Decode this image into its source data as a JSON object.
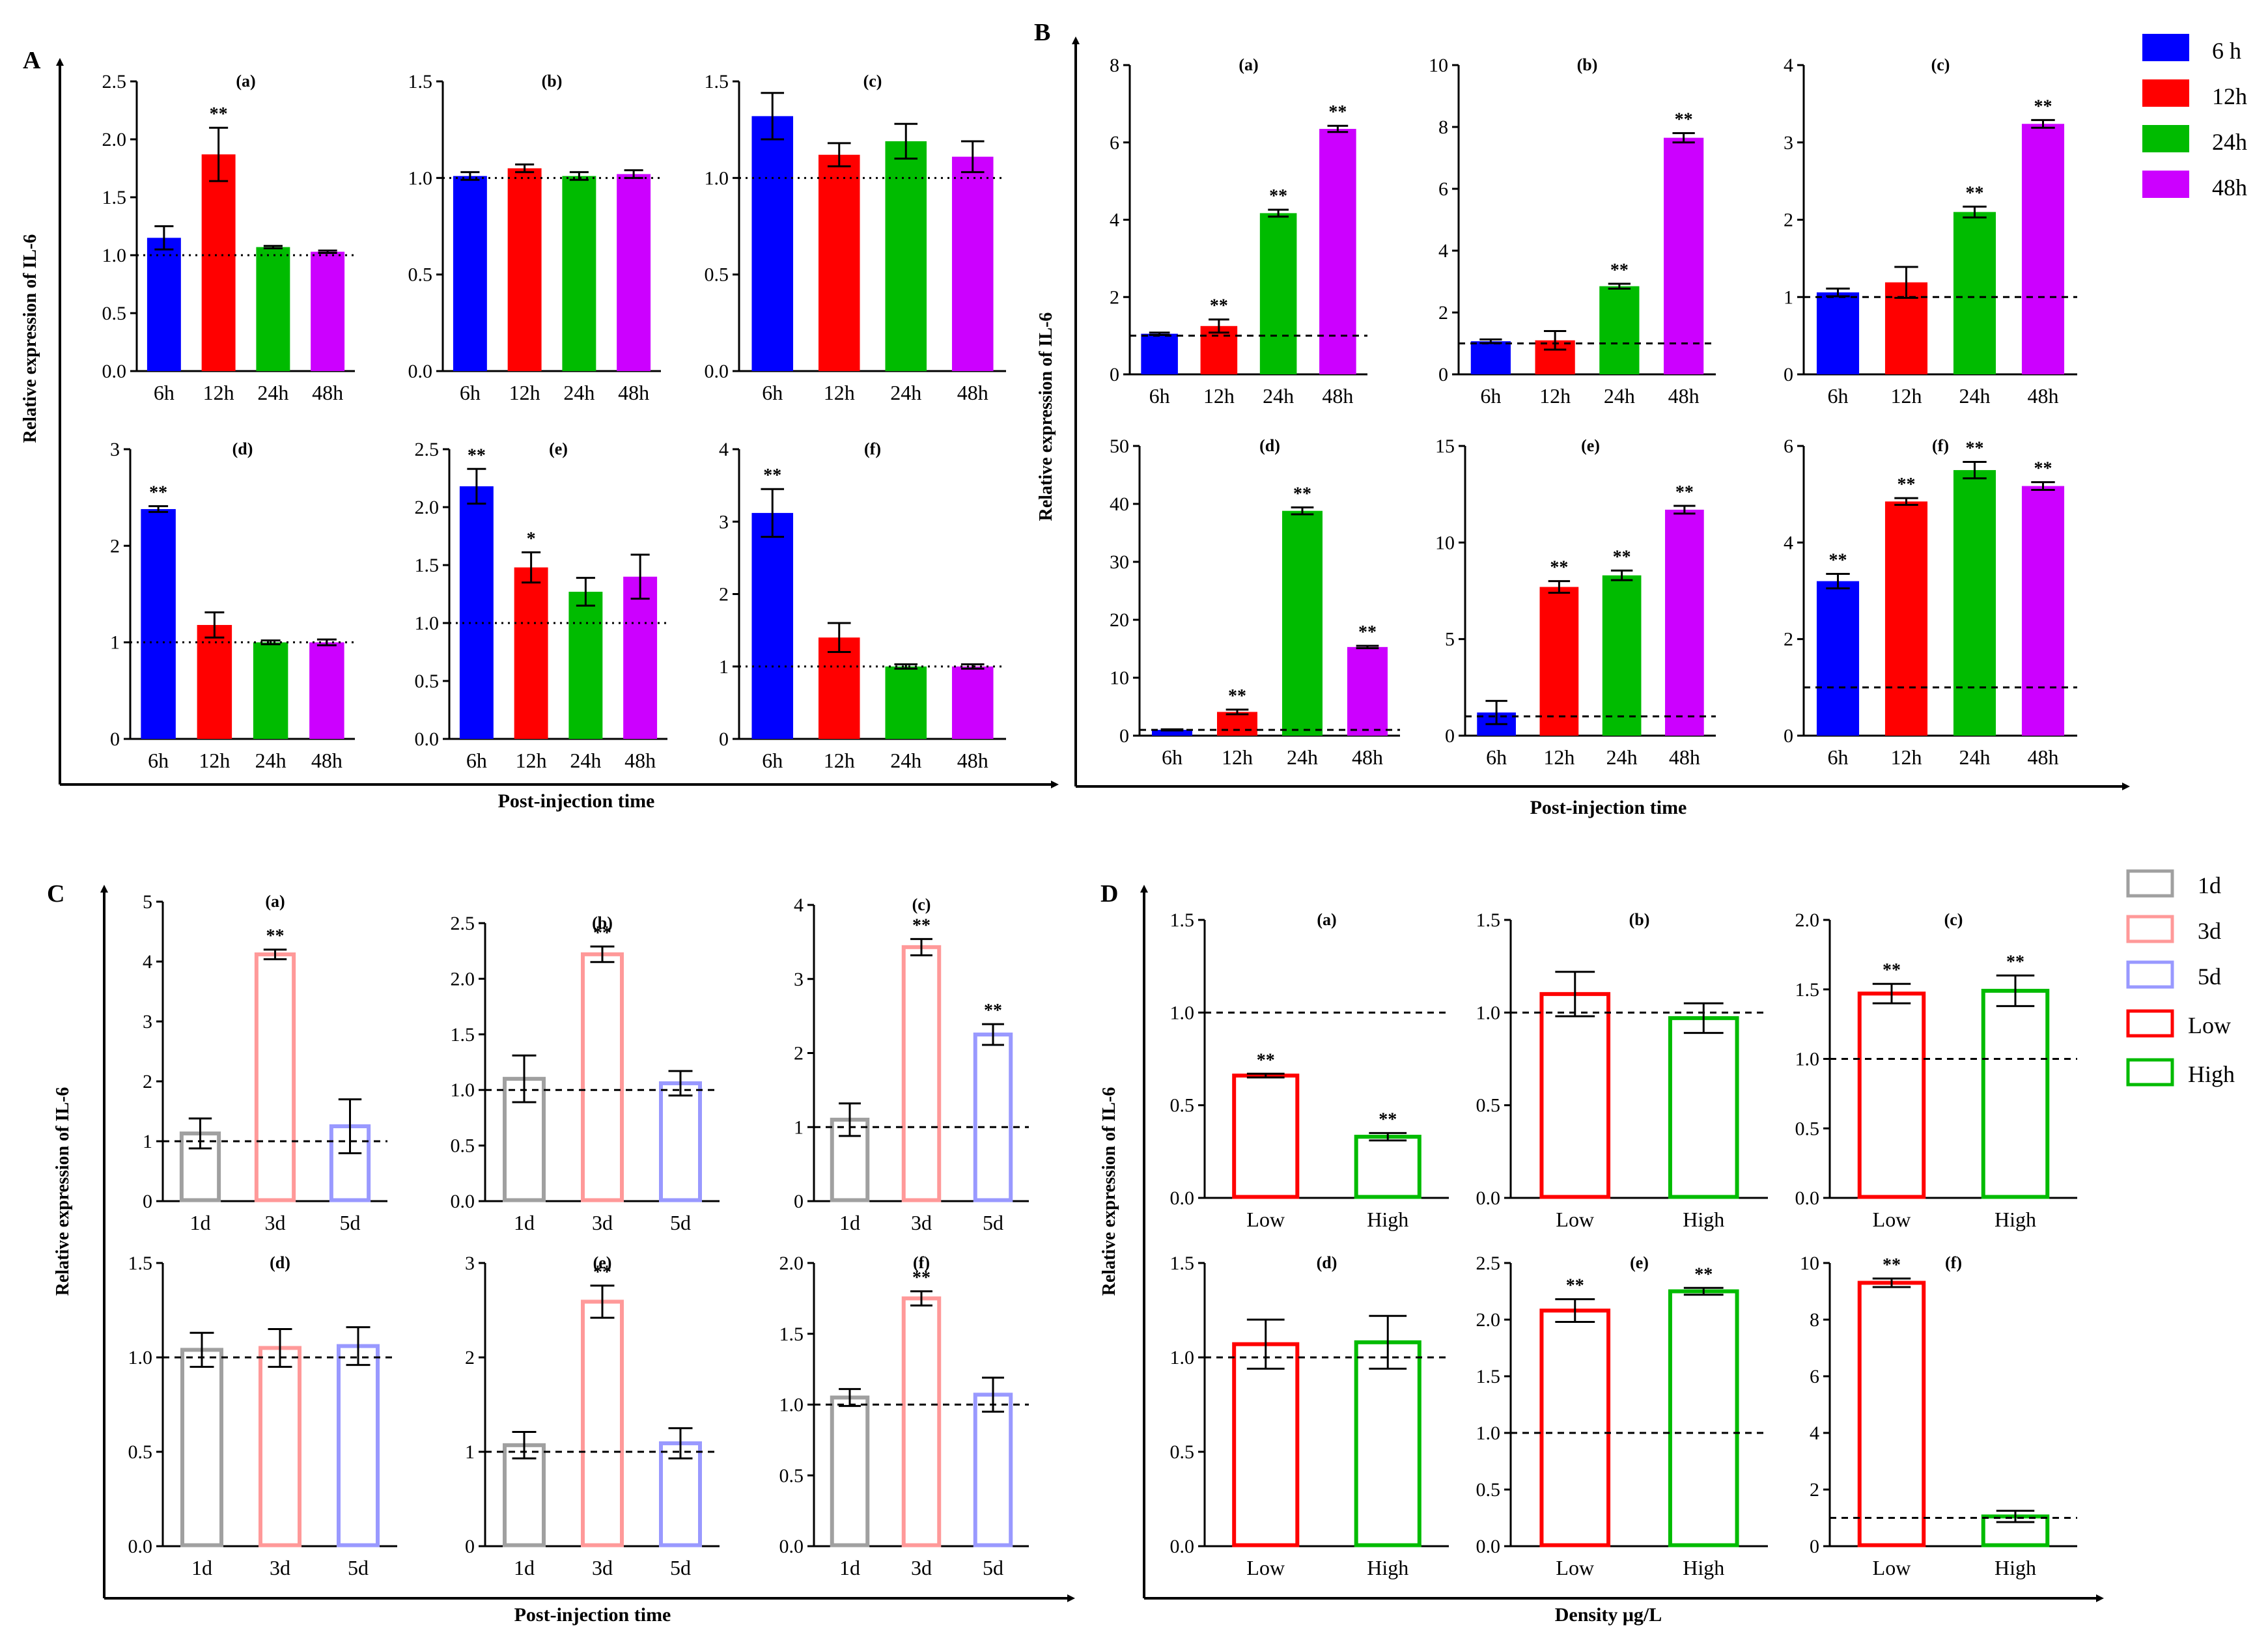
{
  "figure": {
    "panel_letters": [
      "A",
      "B",
      "C",
      "D"
    ],
    "ylabel": "Relative expression of IL-6",
    "xlabels": {
      "A": "Post-injection time",
      "B": "Post-injection time",
      "C": "Post-injection time",
      "D": "Density μg/L"
    },
    "legend_time": [
      {
        "label": "6 h",
        "color": "#0000ff"
      },
      {
        "label": "12h",
        "color": "#ff0000"
      },
      {
        "label": "24h",
        "color": "#00bb00"
      },
      {
        "label": "48h",
        "color": "#cc00ff"
      }
    ],
    "legend_day_density": [
      {
        "label": "1d",
        "color": "#a0a0a0"
      },
      {
        "label": "3d",
        "color": "#ff9999"
      },
      {
        "label": "5d",
        "color": "#9999ff"
      },
      {
        "label": "Low",
        "color": "#ff0000"
      },
      {
        "label": "High",
        "color": "#00bb00"
      }
    ]
  },
  "chart_data": [
    {
      "panel": "A",
      "subtitle": "(a)",
      "type": "bar",
      "style": "filled",
      "categories": [
        "6h",
        "12h",
        "24h",
        "48h"
      ],
      "colors": [
        "#0000ff",
        "#ff0000",
        "#00bb00",
        "#cc00ff"
      ],
      "values": [
        1.15,
        1.87,
        1.07,
        1.03
      ],
      "errors": [
        0.1,
        0.23,
        0.01,
        0.01
      ],
      "sig": [
        "",
        "**",
        "",
        ""
      ],
      "ylim": [
        0,
        2.5
      ],
      "yticks": [
        "0.0",
        "0.5",
        "1.0",
        "1.5",
        "2.0",
        "2.5"
      ],
      "reference": 1.0,
      "ref_style": "dotted"
    },
    {
      "panel": "A",
      "subtitle": "(b)",
      "type": "bar",
      "style": "filled",
      "categories": [
        "6h",
        "12h",
        "24h",
        "48h"
      ],
      "colors": [
        "#0000ff",
        "#ff0000",
        "#00bb00",
        "#cc00ff"
      ],
      "values": [
        1.01,
        1.05,
        1.01,
        1.02
      ],
      "errors": [
        0.02,
        0.02,
        0.02,
        0.02
      ],
      "sig": [
        "",
        "",
        "",
        ""
      ],
      "ylim": [
        0,
        1.5
      ],
      "yticks": [
        "0.0",
        "0.5",
        "1.0",
        "1.5"
      ],
      "reference": 1.0,
      "ref_style": "dotted"
    },
    {
      "panel": "A",
      "subtitle": "(c)",
      "type": "bar",
      "style": "filled",
      "categories": [
        "6h",
        "12h",
        "24h",
        "48h"
      ],
      "colors": [
        "#0000ff",
        "#ff0000",
        "#00bb00",
        "#cc00ff"
      ],
      "values": [
        1.32,
        1.12,
        1.19,
        1.11
      ],
      "errors": [
        0.12,
        0.06,
        0.09,
        0.08
      ],
      "sig": [
        "",
        "",
        "",
        ""
      ],
      "ylim": [
        0,
        1.5
      ],
      "yticks": [
        "0.0",
        "0.5",
        "1.0",
        "1.5"
      ],
      "reference": 1.0,
      "ref_style": "dotted"
    },
    {
      "panel": "A",
      "subtitle": "(d)",
      "type": "bar",
      "style": "filled",
      "categories": [
        "6h",
        "12h",
        "24h",
        "48h"
      ],
      "colors": [
        "#0000ff",
        "#ff0000",
        "#00bb00",
        "#cc00ff"
      ],
      "values": [
        2.38,
        1.18,
        1.0,
        1.0
      ],
      "errors": [
        0.03,
        0.13,
        0.02,
        0.03
      ],
      "sig": [
        "**",
        "",
        "",
        ""
      ],
      "ylim": [
        0,
        3
      ],
      "yticks": [
        "0",
        "1",
        "2",
        "3"
      ],
      "reference": 1.0,
      "ref_style": "dotted"
    },
    {
      "panel": "A",
      "subtitle": "(e)",
      "type": "bar",
      "style": "filled",
      "categories": [
        "6h",
        "12h",
        "24h",
        "48h"
      ],
      "colors": [
        "#0000ff",
        "#ff0000",
        "#00bb00",
        "#cc00ff"
      ],
      "values": [
        2.18,
        1.48,
        1.27,
        1.4
      ],
      "errors": [
        0.15,
        0.13,
        0.12,
        0.19
      ],
      "sig": [
        "**",
        "*",
        "",
        ""
      ],
      "ylim": [
        0,
        2.5
      ],
      "yticks": [
        "0.0",
        "0.5",
        "1.0",
        "1.5",
        "2.0",
        "2.5"
      ],
      "reference": 1.0,
      "ref_style": "dotted"
    },
    {
      "panel": "A",
      "subtitle": "(f)",
      "type": "bar",
      "style": "filled",
      "categories": [
        "6h",
        "12h",
        "24h",
        "48h"
      ],
      "colors": [
        "#0000ff",
        "#ff0000",
        "#00bb00",
        "#cc00ff"
      ],
      "values": [
        3.12,
        1.4,
        1.0,
        1.0
      ],
      "errors": [
        0.33,
        0.2,
        0.03,
        0.03
      ],
      "sig": [
        "**",
        "",
        "",
        ""
      ],
      "ylim": [
        0,
        4
      ],
      "yticks": [
        "0",
        "1",
        "2",
        "3",
        "4"
      ],
      "reference": 1.0,
      "ref_style": "dotted"
    },
    {
      "panel": "B",
      "subtitle": "(a)",
      "type": "bar",
      "style": "filled",
      "categories": [
        "6h",
        "12h",
        "24h",
        "48h"
      ],
      "colors": [
        "#0000ff",
        "#ff0000",
        "#00bb00",
        "#cc00ff"
      ],
      "values": [
        1.05,
        1.25,
        4.17,
        6.35
      ],
      "errors": [
        0.03,
        0.17,
        0.09,
        0.08
      ],
      "sig": [
        "",
        "**",
        "**",
        "**"
      ],
      "ylim": [
        0,
        8
      ],
      "yticks": [
        "0",
        "2",
        "4",
        "6",
        "8"
      ],
      "reference": 1.0,
      "ref_style": "dashed"
    },
    {
      "panel": "B",
      "subtitle": "(b)",
      "type": "bar",
      "style": "filled",
      "categories": [
        "6h",
        "12h",
        "24h",
        "48h"
      ],
      "colors": [
        "#0000ff",
        "#ff0000",
        "#00bb00",
        "#cc00ff"
      ],
      "values": [
        1.07,
        1.1,
        2.85,
        7.65
      ],
      "errors": [
        0.06,
        0.3,
        0.08,
        0.15
      ],
      "sig": [
        "",
        "",
        "**",
        "**"
      ],
      "ylim": [
        0,
        10
      ],
      "yticks": [
        "0",
        "2",
        "4",
        "6",
        "8",
        "10"
      ],
      "reference": 1.0,
      "ref_style": "dashed"
    },
    {
      "panel": "B",
      "subtitle": "(c)",
      "type": "bar",
      "style": "filled",
      "categories": [
        "6h",
        "12h",
        "24h",
        "48h"
      ],
      "colors": [
        "#0000ff",
        "#ff0000",
        "#00bb00",
        "#cc00ff"
      ],
      "values": [
        1.06,
        1.19,
        2.1,
        3.24
      ],
      "errors": [
        0.05,
        0.2,
        0.07,
        0.05
      ],
      "sig": [
        "",
        "",
        "**",
        "**"
      ],
      "ylim": [
        0,
        4
      ],
      "yticks": [
        "0",
        "1",
        "2",
        "3",
        "4"
      ],
      "reference": 1.0,
      "ref_style": "dashed"
    },
    {
      "panel": "B",
      "subtitle": "(d)",
      "type": "bar",
      "style": "filled",
      "categories": [
        "6h",
        "12h",
        "24h",
        "48h"
      ],
      "colors": [
        "#0000ff",
        "#ff0000",
        "#00bb00",
        "#cc00ff"
      ],
      "values": [
        1.0,
        4.1,
        38.8,
        15.3
      ],
      "errors": [
        0.1,
        0.4,
        0.6,
        0.2
      ],
      "sig": [
        "",
        "**",
        "**",
        "**"
      ],
      "ylim": [
        0,
        50
      ],
      "yticks": [
        "0",
        "10",
        "20",
        "30",
        "40",
        "50"
      ],
      "reference": 1.0,
      "ref_style": "dashed"
    },
    {
      "panel": "B",
      "subtitle": "(e)",
      "type": "bar",
      "style": "filled",
      "categories": [
        "6h",
        "12h",
        "24h",
        "48h"
      ],
      "colors": [
        "#0000ff",
        "#ff0000",
        "#00bb00",
        "#cc00ff"
      ],
      "values": [
        1.2,
        7.7,
        8.3,
        11.7
      ],
      "errors": [
        0.6,
        0.3,
        0.25,
        0.2
      ],
      "sig": [
        "",
        "**",
        "**",
        "**"
      ],
      "ylim": [
        0,
        15
      ],
      "yticks": [
        "0",
        "5",
        "10",
        "15"
      ],
      "reference": 1.0,
      "ref_style": "dashed"
    },
    {
      "panel": "B",
      "subtitle": "(f)",
      "type": "bar",
      "style": "filled",
      "categories": [
        "6h",
        "12h",
        "24h",
        "48h"
      ],
      "colors": [
        "#0000ff",
        "#ff0000",
        "#00bb00",
        "#cc00ff"
      ],
      "values": [
        3.2,
        4.85,
        5.5,
        5.17
      ],
      "errors": [
        0.15,
        0.07,
        0.17,
        0.08
      ],
      "sig": [
        "**",
        "**",
        "**",
        "**"
      ],
      "ylim": [
        0,
        6
      ],
      "yticks": [
        "0",
        "2",
        "4",
        "6"
      ],
      "reference": 1.0,
      "ref_style": "dashed"
    },
    {
      "panel": "C",
      "subtitle": "(a)",
      "type": "bar",
      "style": "outline",
      "categories": [
        "1d",
        "3d",
        "5d"
      ],
      "colors": [
        "#a0a0a0",
        "#ff9999",
        "#9999ff"
      ],
      "values": [
        1.13,
        4.12,
        1.25
      ],
      "errors": [
        0.25,
        0.08,
        0.45
      ],
      "sig": [
        "",
        "**",
        ""
      ],
      "ylim": [
        0,
        5
      ],
      "yticks": [
        "0",
        "1",
        "2",
        "3",
        "4",
        "5"
      ],
      "reference": 1.0,
      "ref_style": "dashed"
    },
    {
      "panel": "C",
      "subtitle": "(b)",
      "type": "bar",
      "style": "outline",
      "categories": [
        "1d",
        "3d",
        "5d"
      ],
      "colors": [
        "#a0a0a0",
        "#ff9999",
        "#9999ff"
      ],
      "values": [
        1.1,
        2.22,
        1.06
      ],
      "errors": [
        0.21,
        0.07,
        0.11
      ],
      "sig": [
        "",
        "**",
        ""
      ],
      "ylim": [
        0,
        2.5
      ],
      "yticks": [
        "0.0",
        "0.5",
        "1.0",
        "1.5",
        "2.0",
        "2.5"
      ],
      "reference": 1.0,
      "ref_style": "dashed"
    },
    {
      "panel": "C",
      "subtitle": "(c)",
      "type": "bar",
      "style": "outline",
      "categories": [
        "1d",
        "3d",
        "5d"
      ],
      "colors": [
        "#a0a0a0",
        "#ff9999",
        "#9999ff"
      ],
      "values": [
        1.1,
        3.43,
        2.25
      ],
      "errors": [
        0.22,
        0.11,
        0.14
      ],
      "sig": [
        "",
        "**",
        "**"
      ],
      "ylim": [
        0,
        4
      ],
      "yticks": [
        "0",
        "1",
        "2",
        "3",
        "4"
      ],
      "reference": 1.0,
      "ref_style": "dashed"
    },
    {
      "panel": "C",
      "subtitle": "(d)",
      "type": "bar",
      "style": "outline",
      "categories": [
        "1d",
        "3d",
        "5d"
      ],
      "colors": [
        "#a0a0a0",
        "#ff9999",
        "#9999ff"
      ],
      "values": [
        1.04,
        1.05,
        1.06
      ],
      "errors": [
        0.09,
        0.1,
        0.1
      ],
      "sig": [
        "",
        "",
        ""
      ],
      "ylim": [
        0,
        1.5
      ],
      "yticks": [
        "0.0",
        "0.5",
        "1.0",
        "1.5"
      ],
      "reference": 1.0,
      "ref_style": "dashed"
    },
    {
      "panel": "C",
      "subtitle": "(e)",
      "type": "bar",
      "style": "outline",
      "categories": [
        "1d",
        "3d",
        "5d"
      ],
      "colors": [
        "#a0a0a0",
        "#ff9999",
        "#9999ff"
      ],
      "values": [
        1.07,
        2.59,
        1.09
      ],
      "errors": [
        0.14,
        0.17,
        0.16
      ],
      "sig": [
        "",
        "**",
        ""
      ],
      "ylim": [
        0,
        3
      ],
      "yticks": [
        "0",
        "1",
        "2",
        "3"
      ],
      "reference": 1.0,
      "ref_style": "dashed"
    },
    {
      "panel": "C",
      "subtitle": "(f)",
      "type": "bar",
      "style": "outline",
      "categories": [
        "1d",
        "3d",
        "5d"
      ],
      "colors": [
        "#a0a0a0",
        "#ff9999",
        "#9999ff"
      ],
      "values": [
        1.05,
        1.75,
        1.07
      ],
      "errors": [
        0.06,
        0.05,
        0.12
      ],
      "sig": [
        "",
        "**",
        ""
      ],
      "ylim": [
        0,
        2
      ],
      "yticks": [
        "0.0",
        "0.5",
        "1.0",
        "1.5",
        "2.0"
      ],
      "reference": 1.0,
      "ref_style": "dashed"
    },
    {
      "panel": "D",
      "subtitle": "(a)",
      "type": "bar",
      "style": "outline",
      "categories": [
        "Low",
        "High"
      ],
      "colors": [
        "#ff0000",
        "#00bb00"
      ],
      "values": [
        0.66,
        0.33
      ],
      "errors": [
        0.01,
        0.02
      ],
      "sig": [
        "**",
        "**"
      ],
      "ylim": [
        0,
        1.5
      ],
      "yticks": [
        "0.0",
        "0.5",
        "1.0",
        "1.5"
      ],
      "reference": 1.0,
      "ref_style": "dashed"
    },
    {
      "panel": "D",
      "subtitle": "(b)",
      "type": "bar",
      "style": "outline",
      "categories": [
        "Low",
        "High"
      ],
      "colors": [
        "#ff0000",
        "#00bb00"
      ],
      "values": [
        1.1,
        0.97
      ],
      "errors": [
        0.12,
        0.08
      ],
      "sig": [
        "",
        ""
      ],
      "ylim": [
        0,
        1.5
      ],
      "yticks": [
        "0.0",
        "0.5",
        "1.0",
        "1.5"
      ],
      "reference": 1.0,
      "ref_style": "dashed"
    },
    {
      "panel": "D",
      "subtitle": "(c)",
      "type": "bar",
      "style": "outline",
      "categories": [
        "Low",
        "High"
      ],
      "colors": [
        "#ff0000",
        "#00bb00"
      ],
      "values": [
        1.47,
        1.49
      ],
      "errors": [
        0.07,
        0.11
      ],
      "sig": [
        "**",
        "**"
      ],
      "ylim": [
        0,
        2.0
      ],
      "yticks": [
        "0.0",
        "0.5",
        "1.0",
        "1.5",
        "2.0"
      ],
      "reference": 1.0,
      "ref_style": "dashed"
    },
    {
      "panel": "D",
      "subtitle": "(d)",
      "type": "bar",
      "style": "outline",
      "categories": [
        "Low",
        "High"
      ],
      "colors": [
        "#ff0000",
        "#00bb00"
      ],
      "values": [
        1.07,
        1.08
      ],
      "errors": [
        0.13,
        0.14
      ],
      "sig": [
        "",
        ""
      ],
      "ylim": [
        0,
        1.5
      ],
      "yticks": [
        "0.0",
        "0.5",
        "1.0",
        "1.5"
      ],
      "reference": 1.0,
      "ref_style": "dashed"
    },
    {
      "panel": "D",
      "subtitle": "(e)",
      "type": "bar",
      "style": "outline",
      "categories": [
        "Low",
        "High"
      ],
      "colors": [
        "#ff0000",
        "#00bb00"
      ],
      "values": [
        2.08,
        2.25
      ],
      "errors": [
        0.1,
        0.03
      ],
      "sig": [
        "**",
        "**"
      ],
      "ylim": [
        0,
        2.5
      ],
      "yticks": [
        "0.0",
        "0.5",
        "1.0",
        "1.5",
        "2.0",
        "2.5"
      ],
      "reference": 1.0,
      "ref_style": "dashed"
    },
    {
      "panel": "D",
      "subtitle": "(f)",
      "type": "bar",
      "style": "outline",
      "categories": [
        "Low",
        "High"
      ],
      "colors": [
        "#ff0000",
        "#00bb00"
      ],
      "values": [
        9.3,
        1.05
      ],
      "errors": [
        0.15,
        0.2
      ],
      "sig": [
        "**",
        ""
      ],
      "ylim": [
        0,
        10
      ],
      "yticks": [
        "0",
        "2",
        "4",
        "6",
        "8",
        "10"
      ],
      "reference": 1.0,
      "ref_style": "dashed"
    }
  ]
}
